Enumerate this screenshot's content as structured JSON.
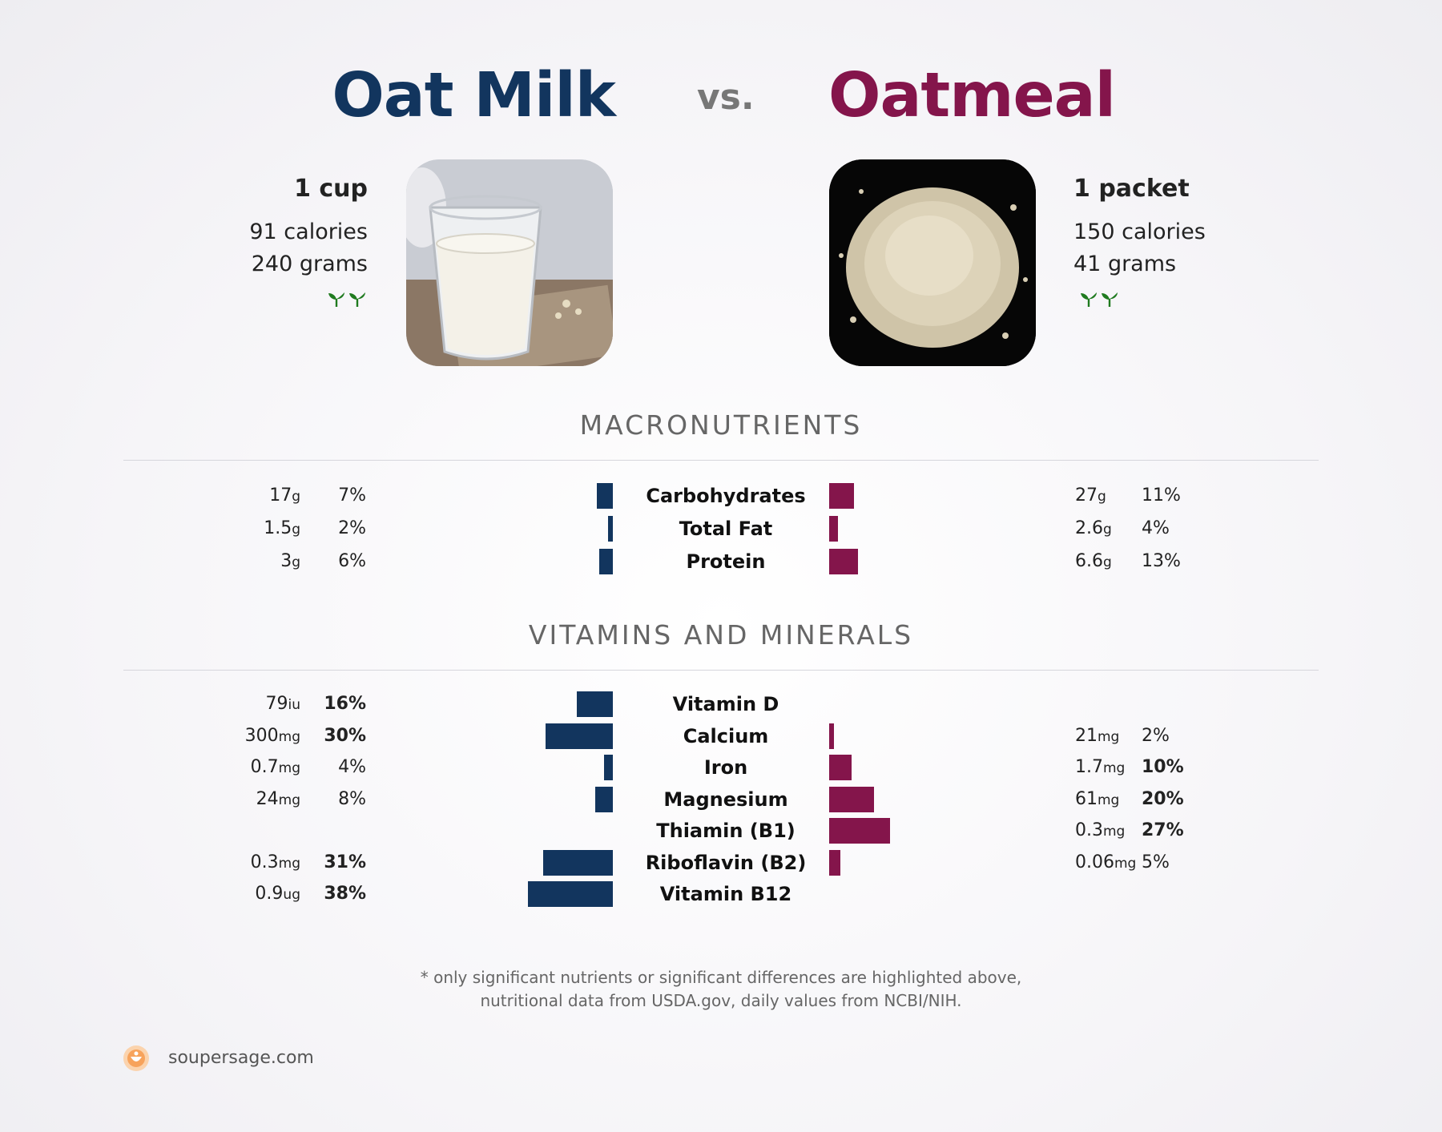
{
  "header": {
    "left_title": "Oat Milk",
    "vs": "vs.",
    "right_title": "Oatmeal"
  },
  "left_food": {
    "serving": "1 cup",
    "calories": "91 calories",
    "grams": "240 grams",
    "icon": "vegan-leaf-icon",
    "color": "#12355e"
  },
  "right_food": {
    "serving": "1 packet",
    "calories": "150 calories",
    "grams": "41 grams",
    "icon": "vegan-leaf-icon",
    "color": "#84154b"
  },
  "sections": {
    "macros_title": "MACRONUTRIENTS",
    "vitamins_title": "VITAMINS AND MINERALS"
  },
  "macros": [
    {
      "name": "Carbohydrates",
      "left_amt": "17",
      "left_unit": "g",
      "left_pct": "7%",
      "left_level": 7,
      "right_amt": "27",
      "right_unit": "g",
      "right_pct": "11%",
      "right_level": 11
    },
    {
      "name": "Total Fat",
      "left_amt": "1.5",
      "left_unit": "g",
      "left_pct": "2%",
      "left_level": 2,
      "right_amt": "2.6",
      "right_unit": "g",
      "right_pct": "4%",
      "right_level": 4
    },
    {
      "name": "Protein",
      "left_amt": "3",
      "left_unit": "g",
      "left_pct": "6%",
      "left_level": 6,
      "right_amt": "6.6",
      "right_unit": "g",
      "right_pct": "13%",
      "right_level": 13
    }
  ],
  "vitamins": [
    {
      "name": "Vitamin D",
      "left_amt": "79",
      "left_unit": "iu",
      "left_pct": "16%",
      "left_bold": true,
      "left_level": 16,
      "right_amt": "",
      "right_unit": "",
      "right_pct": "",
      "right_bold": false,
      "right_level": 0
    },
    {
      "name": "Calcium",
      "left_amt": "300",
      "left_unit": "mg",
      "left_pct": "30%",
      "left_bold": true,
      "left_level": 30,
      "right_amt": "21",
      "right_unit": "mg",
      "right_pct": "2%",
      "right_bold": false,
      "right_level": 2
    },
    {
      "name": "Iron",
      "left_amt": "0.7",
      "left_unit": "mg",
      "left_pct": "4%",
      "left_bold": false,
      "left_level": 4,
      "right_amt": "1.7",
      "right_unit": "mg",
      "right_pct": "10%",
      "right_bold": true,
      "right_level": 10
    },
    {
      "name": "Magnesium",
      "left_amt": "24",
      "left_unit": "mg",
      "left_pct": "8%",
      "left_bold": false,
      "left_level": 8,
      "right_amt": "61",
      "right_unit": "mg",
      "right_pct": "20%",
      "right_bold": true,
      "right_level": 20
    },
    {
      "name": "Thiamin (B1)",
      "left_amt": "",
      "left_unit": "",
      "left_pct": "",
      "left_bold": false,
      "left_level": 0,
      "right_amt": "0.3",
      "right_unit": "mg",
      "right_pct": "27%",
      "right_bold": true,
      "right_level": 27
    },
    {
      "name": "Riboflavin (B2)",
      "left_amt": "0.3",
      "left_unit": "mg",
      "left_pct": "31%",
      "left_bold": true,
      "left_level": 31,
      "right_amt": "0.06",
      "right_unit": "mg",
      "right_pct": "5%",
      "right_bold": false,
      "right_level": 5
    },
    {
      "name": "Vitamin B12",
      "left_amt": "0.9",
      "left_unit": "ug",
      "left_pct": "38%",
      "left_bold": true,
      "left_level": 38,
      "right_amt": "",
      "right_unit": "",
      "right_pct": "",
      "right_bold": false,
      "right_level": 0
    }
  ],
  "footnote": {
    "line1": "* only significant nutrients or significant differences are highlighted above,",
    "line2": "nutritional data from USDA.gov, daily values from NCBI/NIH."
  },
  "brand": {
    "name": "soupersage.com",
    "logo_icon": "soupersage-logo-icon",
    "logo_color": "#f7a35c"
  }
}
